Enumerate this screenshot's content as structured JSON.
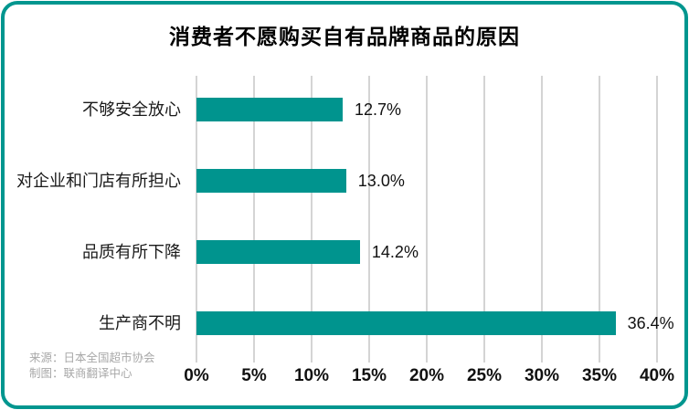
{
  "title": "消费者不愿购买自有品牌商品的原因",
  "source": {
    "line1": "来源：日本全国超市协会",
    "line2": "制图：联商翻译中心"
  },
  "colors": {
    "bar": "#00948E",
    "border": "#00968F",
    "gridline": "#D4D4D4",
    "title_text": "#000000",
    "source_text": "#A8A8A8"
  },
  "chart_data": {
    "type": "bar",
    "orientation": "horizontal",
    "title": "消费者不愿购买自有品牌商品的原因",
    "categories": [
      "不够安全放心",
      "对企业和门店有所担心",
      "品质有所下降",
      "生产商不明"
    ],
    "values": [
      12.7,
      13.0,
      14.2,
      36.4
    ],
    "value_labels": [
      "12.7%",
      "13.0%",
      "14.2%",
      "36.4%"
    ],
    "xlabel": "",
    "ylabel": "",
    "xlim": [
      0,
      40
    ],
    "tick_step": 5,
    "tick_labels": [
      "0%",
      "5%",
      "10%",
      "15%",
      "20%",
      "25%",
      "30%",
      "35%",
      "40%"
    ],
    "grid": true,
    "legend": false
  }
}
